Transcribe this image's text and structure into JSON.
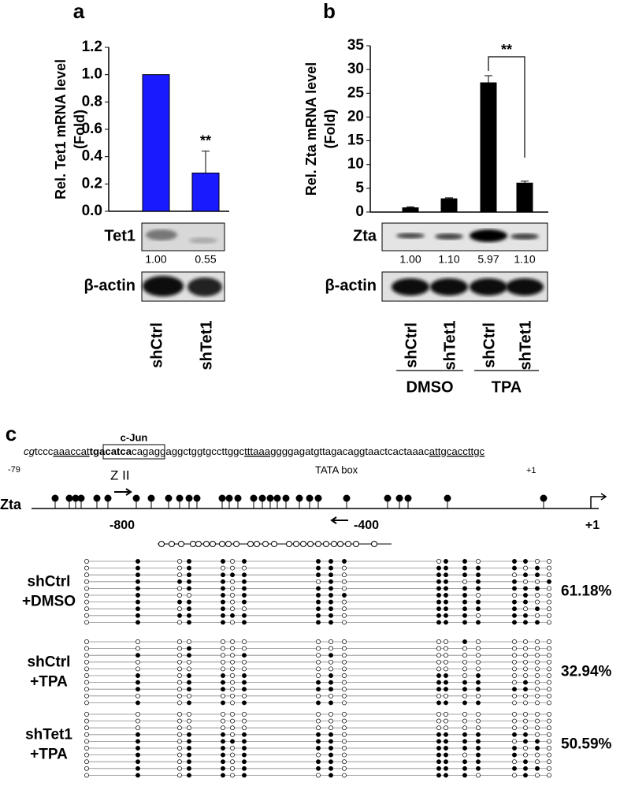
{
  "chart_data": [
    {
      "type": "bar",
      "panel": "a",
      "y_label": [
        "Rel. Tet1 mRNA level",
        "(Fold)"
      ],
      "categories": [
        "shCtrl",
        "shTet1"
      ],
      "values": [
        1.0,
        0.28
      ],
      "errors": [
        null,
        0.16
      ],
      "color": "#1a1aff",
      "ylim": [
        0,
        1.2
      ],
      "yticks": [
        {
          "value": 0,
          "label": "0.0"
        },
        0.2,
        0.4,
        0.6,
        0.8,
        {
          "value": 1,
          "label": "1.0"
        },
        1.2
      ],
      "significance": "**",
      "blots": [
        {
          "name": "Tet1",
          "quant": [
            "1.00",
            "0.55"
          ]
        },
        {
          "name": "β-actin"
        }
      ]
    },
    {
      "type": "bar",
      "panel": "b",
      "y_label": [
        "Rel. Zta mRNA level",
        "(Fold)"
      ],
      "categories": [
        "shCtrl",
        "shTet1",
        "shCtrl",
        "shTet1"
      ],
      "values": [
        0.9,
        2.8,
        27.2,
        6.1
      ],
      "errors": [
        0.2,
        0.2,
        1.5,
        0.4
      ],
      "color": "#000000",
      "ylim": [
        0,
        35
      ],
      "yticks": [
        0,
        5,
        10,
        15,
        20,
        25,
        30,
        35
      ],
      "significance": "**",
      "groups": [
        "DMSO",
        "TPA"
      ],
      "blots": [
        {
          "name": "Zta",
          "quant": [
            "1.00",
            "1.10",
            "5.97",
            "1.10"
          ]
        },
        {
          "name": "β-actin"
        }
      ]
    }
  ],
  "panel_c": {
    "label": "c",
    "motif": "c-Jun",
    "sequence": [
      "cg",
      "tccc",
      "aaaccat",
      "tgacatca",
      "cagaggaggctggtgccttggc",
      "tttaaagg",
      "ggagatgttagacaggtaactcactaaac",
      "attgcaccttgc"
    ],
    "seq_start": "-79",
    "element": "Z II",
    "tata": "TATA box",
    "seq_end": "+1",
    "gene": "Zta",
    "map_ticks": [
      "-800",
      "-400",
      "+1"
    ],
    "groups": [
      {
        "label": [
          "shCtrl",
          "+DMSO"
        ],
        "percent": "61.18%",
        "rows": [
          "010110111101101100",
          "010100011011111010",
          "010111111011110110",
          "011110101011011001",
          "010110111011111110",
          "010010111111100100",
          "011110111011111100",
          "010110011011111010",
          "011111111011101100",
          "010110111011111110"
        ]
      },
      {
        "label": [
          "shCtrl",
          "+TPA"
        ],
        "percent": "32.94%",
        "rows": [
          "000000000000100000",
          "000100000000000000",
          "010100101000000000",
          "000000000000000000",
          "000000000000000000",
          "010110101011010000",
          "010110111011110100",
          "010110111011111100",
          "000000000000000000",
          "010110111011110000"
        ]
      },
      {
        "label": [
          "shTet1",
          "+TPA"
        ],
        "percent": "50.59%",
        "rows": [
          "000000000000000000",
          "000000000000000000",
          "000000000000000000",
          "010110111011111100",
          "010111111011110110",
          "010110111011111010",
          "010110101011011000",
          "010110111011110100",
          "010110111011111110",
          "010110101011100100"
        ]
      }
    ]
  }
}
